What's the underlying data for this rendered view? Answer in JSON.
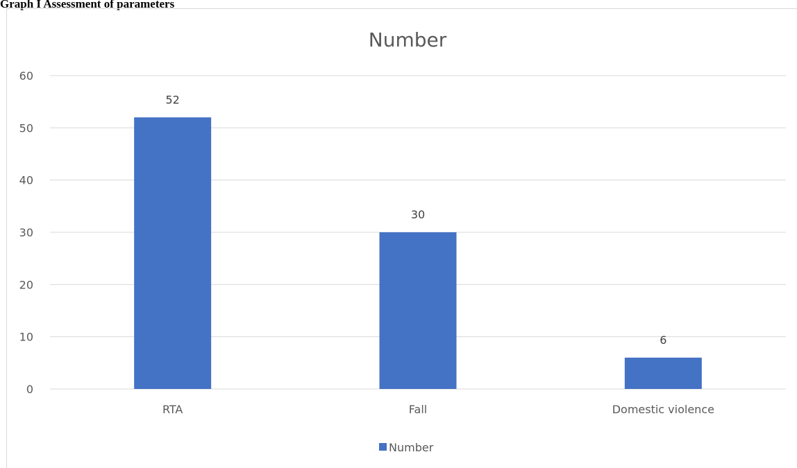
{
  "caption": "Graph I Assessment of parameters",
  "chart_data": {
    "type": "bar",
    "title": "Number",
    "categories": [
      "RTA",
      "Fall",
      "Domestic violence"
    ],
    "series": [
      {
        "name": "Number",
        "values": [
          52,
          30,
          6
        ],
        "color": "#4472c4"
      }
    ],
    "data_labels": [
      "52",
      "30",
      "6"
    ],
    "ylim": [
      0,
      60
    ],
    "yticks": [
      0,
      10,
      20,
      30,
      40,
      50,
      60
    ],
    "grid": true,
    "legend": "bottom",
    "xlabel": "",
    "ylabel": ""
  }
}
